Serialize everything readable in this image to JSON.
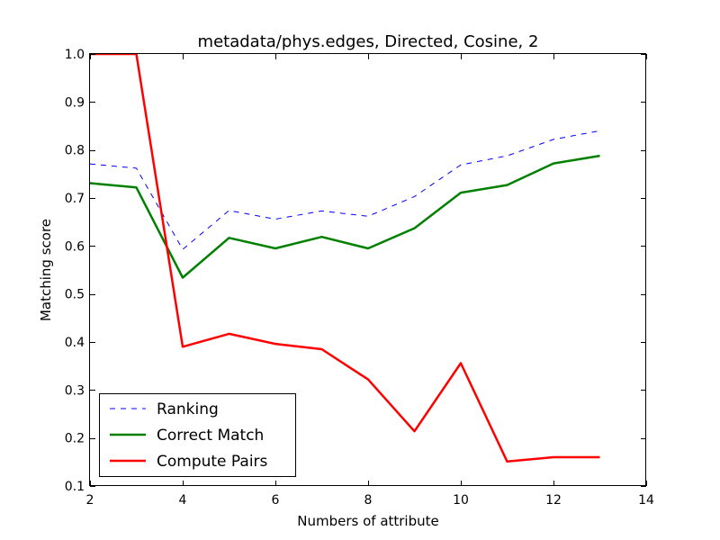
{
  "chart_data": {
    "type": "line",
    "title": "metadata/phys.edges, Directed, Cosine, 2",
    "xlabel": "Numbers of attribute",
    "ylabel": "Matching score",
    "xlim": [
      2,
      14
    ],
    "ylim": [
      0.1,
      1.0
    ],
    "xticks": [
      2,
      4,
      6,
      8,
      10,
      12,
      14
    ],
    "yticks": [
      0.1,
      0.2,
      0.3,
      0.4,
      0.5,
      0.6,
      0.7,
      0.8,
      0.9,
      1.0
    ],
    "xtick_labels": [
      "2",
      "4",
      "6",
      "8",
      "10",
      "12",
      "14"
    ],
    "ytick_labels": [
      "0.1",
      "0.2",
      "0.3",
      "0.4",
      "0.5",
      "0.6",
      "0.7",
      "0.8",
      "0.9",
      "1.0"
    ],
    "grid": false,
    "legend_position": "lower-left",
    "x": [
      2,
      3,
      4,
      5,
      6,
      7,
      8,
      9,
      10,
      11,
      12,
      13
    ],
    "series": [
      {
        "name": "Ranking",
        "color": "#0000ff",
        "style": "dashed",
        "values": [
          0.771,
          0.762,
          0.593,
          0.674,
          0.656,
          0.673,
          0.662,
          0.703,
          0.769,
          0.788,
          0.822,
          0.84
        ]
      },
      {
        "name": "Correct Match",
        "color": "#008000",
        "style": "solid",
        "values": [
          0.731,
          0.722,
          0.534,
          0.617,
          0.595,
          0.619,
          0.595,
          0.637,
          0.711,
          0.727,
          0.772,
          0.788
        ]
      },
      {
        "name": "Compute Pairs",
        "color": "#ff0000",
        "style": "solid",
        "values": [
          1.0,
          1.0,
          0.39,
          0.417,
          0.396,
          0.385,
          0.322,
          0.214,
          0.356,
          0.151,
          0.16,
          0.16
        ]
      }
    ]
  }
}
